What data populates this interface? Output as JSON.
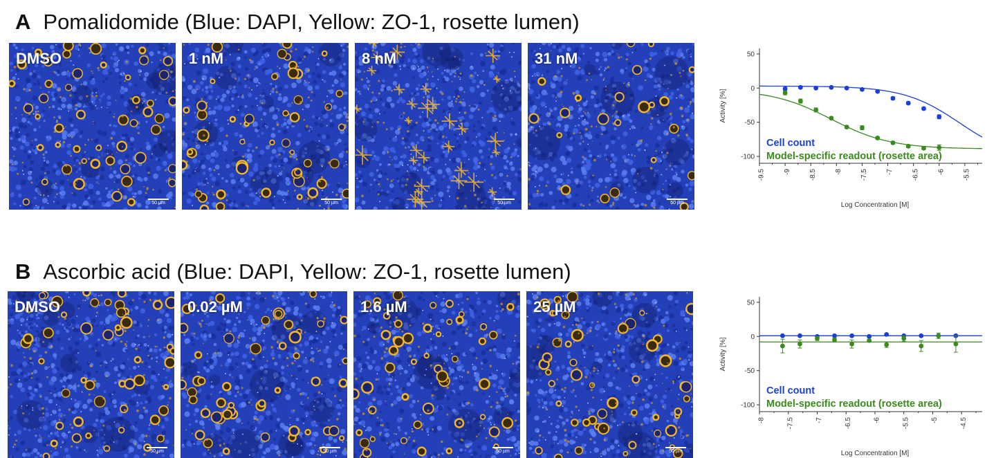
{
  "panels": [
    {
      "letter": "A",
      "title": "Pomalidomide (Blue: DAPI, Yellow: ZO-1, rosette lumen)",
      "images": [
        {
          "label": "DMSO",
          "scale": "50 µm"
        },
        {
          "label": "1 nM",
          "scale": "50 µm"
        },
        {
          "label": "8 nM",
          "scale": "50 µm"
        },
        {
          "label": "31 nM",
          "scale": "50 µm"
        }
      ]
    },
    {
      "letter": "B",
      "title": "Ascorbic acid (Blue: DAPI, Yellow: ZO-1, rosette lumen)",
      "images": [
        {
          "label": "DMSO",
          "scale": "50 µm"
        },
        {
          "label": "0.02 µM",
          "scale": "50 µm"
        },
        {
          "label": "1.6 µM",
          "scale": "50 µm"
        },
        {
          "label": "25 µM",
          "scale": "50 µm"
        }
      ]
    }
  ],
  "colors": {
    "blue_series": "#1a3fd6",
    "green_series": "#3a8a1e"
  },
  "chart_data": [
    {
      "type": "scatter",
      "xlabel": "Log Concentration [M]",
      "ylabel": "Activity [%]",
      "xlim": [
        -9.5,
        -5
      ],
      "ylim": [
        -110,
        58
      ],
      "xticks": [
        "-9.5",
        "-9",
        "-8.5",
        "-8",
        "-7.5",
        "-7",
        "-6.5",
        "-6",
        "-5.5",
        "-5"
      ],
      "yticks": [
        "50",
        "0",
        "-50",
        "-100"
      ],
      "xtick_values": [
        -9.5,
        -9,
        -8.5,
        -8,
        -7.5,
        -7,
        -6.5,
        -6,
        -5.5,
        -5
      ],
      "ytick_values": [
        50,
        0,
        -50,
        -100
      ],
      "series": [
        {
          "name": "Cell count",
          "color": "#1a3fd6",
          "x": [
            -9.0,
            -8.7,
            -8.4,
            -8.1,
            -7.8,
            -7.5,
            -7.2,
            -6.9,
            -6.6,
            -6.3,
            -6.0
          ],
          "y": [
            -1,
            1,
            0,
            1,
            0,
            -2,
            -5,
            -15,
            -22,
            -30,
            -42
          ],
          "err": [
            2,
            1,
            1,
            1,
            1,
            1,
            1,
            2,
            2,
            2,
            3
          ],
          "fit": {
            "top": 3,
            "bottom": -105,
            "logec50": -5.6,
            "hill": 0.8
          }
        },
        {
          "name": "Model-specific readout (rosette area)",
          "color": "#3a8a1e",
          "x": [
            -9.0,
            -8.7,
            -8.4,
            -8.1,
            -7.8,
            -7.5,
            -7.2,
            -6.9,
            -6.6,
            -6.3,
            -6.0
          ],
          "y": [
            -7,
            -19,
            -32,
            -44,
            -57,
            -58,
            -73,
            -80,
            -85,
            -88,
            -87
          ],
          "err": [
            3,
            3,
            3,
            2,
            2,
            3,
            2,
            2,
            2,
            2,
            4
          ],
          "fit": {
            "top": -2,
            "bottom": -89,
            "logec50": -8.1,
            "hill": 0.75
          }
        }
      ]
    },
    {
      "type": "scatter",
      "xlabel": "Log Concentration [M]",
      "ylabel": "Activity [%]",
      "xlim": [
        -8,
        -4
      ],
      "ylim": [
        -110,
        58
      ],
      "xticks": [
        "-8",
        "-7.5",
        "-7",
        "-6.5",
        "-6",
        "-5.5",
        "-5",
        "-4.5",
        "-4"
      ],
      "yticks": [
        "50",
        "0",
        "-50",
        "-100"
      ],
      "xtick_values": [
        -8,
        -7.5,
        -7,
        -6.5,
        -6,
        -5.5,
        -5,
        -4.5,
        -4
      ],
      "ytick_values": [
        50,
        0,
        -50,
        -100
      ],
      "series": [
        {
          "name": "Cell count",
          "color": "#1a3fd6",
          "x": [
            -7.6,
            -7.3,
            -7.0,
            -6.7,
            -6.4,
            -6.1,
            -5.8,
            -5.5,
            -5.2,
            -4.9,
            -4.6
          ],
          "y": [
            1,
            1,
            0,
            1,
            1,
            0,
            3,
            1,
            1,
            1,
            1
          ],
          "err": [
            1,
            1,
            1,
            1,
            1,
            1,
            1,
            1,
            1,
            1,
            1
          ],
          "fit": {
            "flat": 1
          }
        },
        {
          "name": "Model-specific readout (rosette area)",
          "color": "#3a8a1e",
          "x": [
            -7.6,
            -7.3,
            -7.0,
            -6.7,
            -6.4,
            -6.1,
            -5.8,
            -5.5,
            -5.2,
            -4.9,
            -4.6
          ],
          "y": [
            -14,
            -11,
            -3,
            -5,
            -11,
            -6,
            -12,
            -3,
            -14,
            1,
            -11
          ],
          "err": [
            10,
            6,
            3,
            3,
            6,
            2,
            4,
            4,
            8,
            4,
            12
          ],
          "fit": {
            "flat": -8
          }
        }
      ]
    }
  ]
}
